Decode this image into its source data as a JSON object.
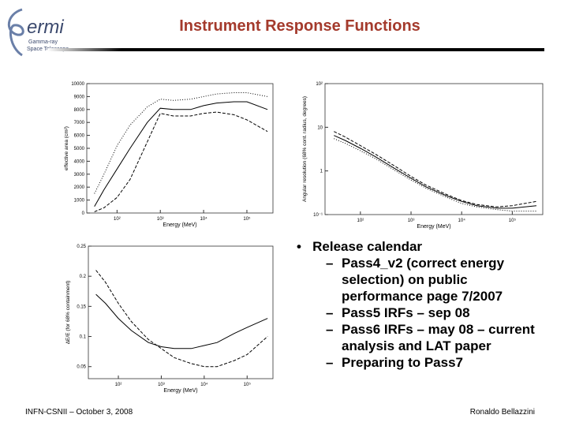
{
  "logo": {
    "name": "ermi",
    "line1": "Gamma-ray",
    "line2": "Space Telescope"
  },
  "header": {
    "title": "Instrument Response Functions"
  },
  "bullets": {
    "heading": "Release calendar",
    "items": [
      "Pass4_v2 (correct energy selection) on public performance page 7/2007",
      "Pass5 IRFs – sep 08",
      "Pass6 IRFs – may 08 – current analysis and LAT paper",
      "Preparing to Pass7"
    ]
  },
  "footer": {
    "left": "INFN-CSNII – October 3, 2008",
    "right": "Ronaldo Bellazzini"
  },
  "chart_data": [
    {
      "type": "line",
      "x_label": "Energy (MeV)",
      "y_label": "effective area (cm²)",
      "xscale": "log",
      "yscale": "linear",
      "xlim": [
        20,
        400000
      ],
      "ylim": [
        0,
        10000
      ],
      "xticks": [
        {
          "value": 100,
          "label": "10²"
        },
        {
          "value": 1000,
          "label": "10³"
        },
        {
          "value": 10000,
          "label": "10⁴"
        },
        {
          "value": 100000,
          "label": "10⁵"
        }
      ],
      "yticks": [
        0,
        1000,
        2000,
        3000,
        4000,
        5000,
        6000,
        7000,
        8000,
        9000,
        10000
      ],
      "x": [
        30,
        50,
        100,
        200,
        500,
        1000,
        2000,
        5000,
        10000,
        20000,
        50000,
        100000,
        300000
      ],
      "series": [
        {
          "color": "#000000",
          "style": "dotted",
          "values": [
            1500,
            3000,
            5200,
            6800,
            8200,
            8800,
            8700,
            8800,
            9000,
            9200,
            9300,
            9300,
            9000
          ]
        },
        {
          "color": "#000000",
          "style": "solid",
          "values": [
            500,
            1800,
            3400,
            5000,
            7000,
            8100,
            8000,
            8000,
            8300,
            8500,
            8600,
            8600,
            8000
          ]
        },
        {
          "color": "#000000",
          "style": "dashed",
          "values": [
            100,
            400,
            1200,
            2600,
            5500,
            7700,
            7500,
            7500,
            7700,
            7800,
            7600,
            7200,
            6300
          ]
        }
      ]
    },
    {
      "type": "line",
      "x_label": "Energy (MeV)",
      "y_label": "Angular resolution (68% cont. radius, degrees)",
      "xscale": "log",
      "yscale": "log",
      "xlim": [
        20,
        400000
      ],
      "ylim": [
        0.1,
        100
      ],
      "xticks": [
        {
          "value": 100,
          "label": "10²"
        },
        {
          "value": 1000,
          "label": "10³"
        },
        {
          "value": 10000,
          "label": "10⁴"
        },
        {
          "value": 100000,
          "label": "10⁵"
        }
      ],
      "yticks": [
        {
          "value": 0.1,
          "label": "10⁻¹"
        },
        1,
        10,
        {
          "value": 100,
          "label": "10²"
        }
      ],
      "x": [
        30,
        50,
        100,
        200,
        500,
        1000,
        2000,
        5000,
        10000,
        20000,
        50000,
        100000,
        300000
      ],
      "series": [
        {
          "color": "#000000",
          "style": "solid",
          "values": [
            6.5,
            5,
            3.3,
            2.1,
            1.1,
            0.68,
            0.43,
            0.27,
            0.2,
            0.16,
            0.14,
            0.14,
            0.16
          ]
        },
        {
          "color": "#000000",
          "style": "dashed",
          "values": [
            8,
            6,
            3.8,
            2.4,
            1.25,
            0.75,
            0.47,
            0.29,
            0.21,
            0.17,
            0.15,
            0.16,
            0.2
          ]
        },
        {
          "color": "#000000",
          "style": "dotted",
          "values": [
            5.5,
            4.3,
            2.9,
            1.9,
            1,
            0.62,
            0.4,
            0.25,
            0.18,
            0.15,
            0.13,
            0.12,
            0.12
          ]
        }
      ]
    },
    {
      "type": "line",
      "x_label": "Energy (MeV)",
      "y_label": "ΔE/E (for 68% containment)",
      "xscale": "log",
      "yscale": "linear",
      "xlim": [
        20,
        400000
      ],
      "ylim": [
        0.03,
        0.25
      ],
      "xticks": [
        {
          "value": 100,
          "label": "10²"
        },
        {
          "value": 1000,
          "label": "10³"
        },
        {
          "value": 10000,
          "label": "10⁴"
        },
        {
          "value": 100000,
          "label": "10⁵"
        }
      ],
      "yticks": [
        0.05,
        0.1,
        0.15,
        0.2,
        0.25
      ],
      "x": [
        30,
        50,
        100,
        200,
        500,
        1000,
        2000,
        5000,
        10000,
        20000,
        50000,
        100000,
        300000
      ],
      "series": [
        {
          "color": "#000000",
          "style": "solid",
          "values": [
            0.17,
            0.155,
            0.13,
            0.11,
            0.09,
            0.083,
            0.08,
            0.08,
            0.085,
            0.09,
            0.105,
            0.115,
            0.13
          ]
        },
        {
          "color": "#000000",
          "style": "dashed",
          "values": [
            0.21,
            0.19,
            0.155,
            0.125,
            0.095,
            0.08,
            0.065,
            0.055,
            0.05,
            0.05,
            0.06,
            0.07,
            0.1
          ]
        }
      ]
    }
  ]
}
